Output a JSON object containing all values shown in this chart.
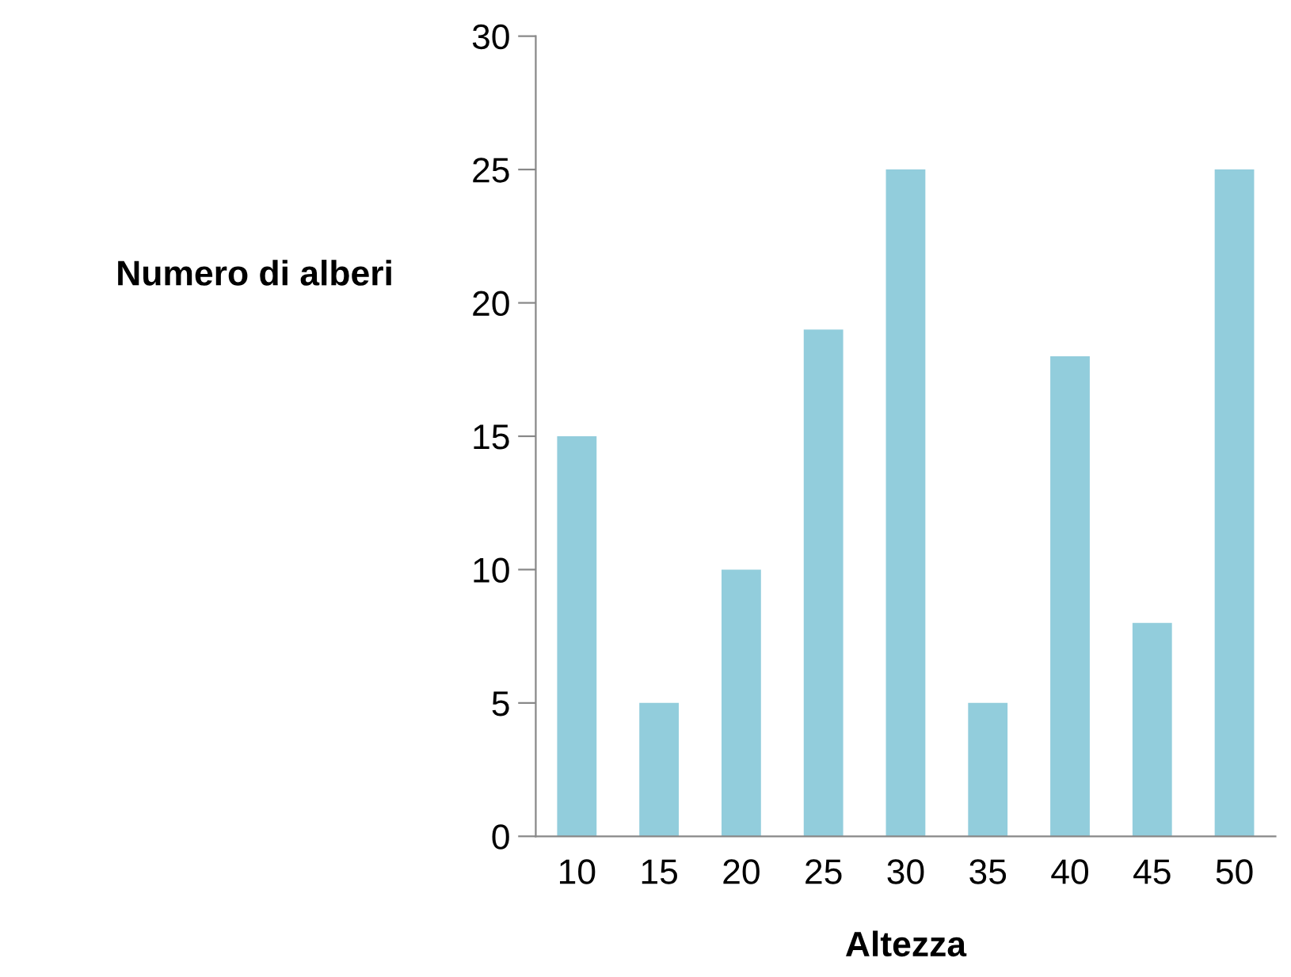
{
  "chart_data": {
    "type": "bar",
    "xlabel": "Altezza",
    "ylabel": "Numero di alberi",
    "categories": [
      "10",
      "15",
      "20",
      "25",
      "30",
      "35",
      "40",
      "45",
      "50"
    ],
    "values": [
      15,
      5,
      10,
      19,
      25,
      5,
      18,
      8,
      25
    ],
    "color": "#92cddc",
    "ylim": [
      0,
      30
    ],
    "yticks": [
      0,
      5,
      10,
      15,
      20,
      25,
      30
    ],
    "grid": false,
    "legend": false
  }
}
